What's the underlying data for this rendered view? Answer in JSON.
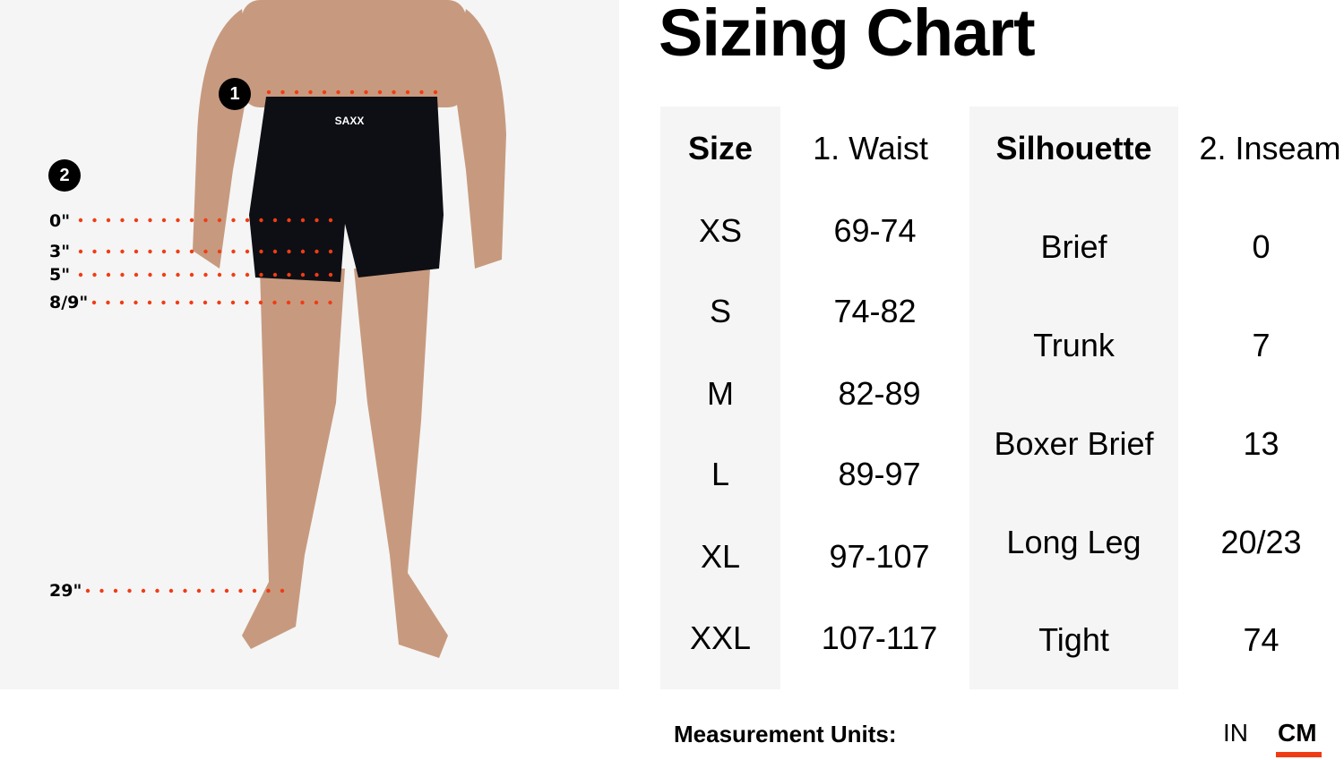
{
  "title": "Sizing Chart",
  "figure": {
    "brand": "SAXX",
    "badges": [
      "1",
      "2"
    ],
    "inseam_marks": [
      "0\"",
      "3\"",
      "5\"",
      "8/9\"",
      "29\""
    ],
    "accent": "#f03c14"
  },
  "table": {
    "size_header": "Size",
    "waist_header": "1.  Waist",
    "silhouette_header": "Silhouette",
    "inseam_header": "2.  Inseam",
    "sizes": [
      {
        "size": "XS",
        "waist": "69-74"
      },
      {
        "size": "S",
        "waist": "74-82"
      },
      {
        "size": "M",
        "waist": "82-89"
      },
      {
        "size": "L",
        "waist": "89-97"
      },
      {
        "size": "XL",
        "waist": "97-107"
      },
      {
        "size": "XXL",
        "waist": "107-117"
      }
    ],
    "silhouettes": [
      {
        "name": "Brief",
        "inseam": "0"
      },
      {
        "name": "Trunk",
        "inseam": "7"
      },
      {
        "name": "Boxer Brief",
        "inseam": "13"
      },
      {
        "name": "Long Leg",
        "inseam": "20/23"
      },
      {
        "name": "Tight",
        "inseam": "74"
      }
    ]
  },
  "units": {
    "label": "Measurement Units:",
    "options": [
      "IN",
      "CM"
    ],
    "selected": "CM"
  }
}
